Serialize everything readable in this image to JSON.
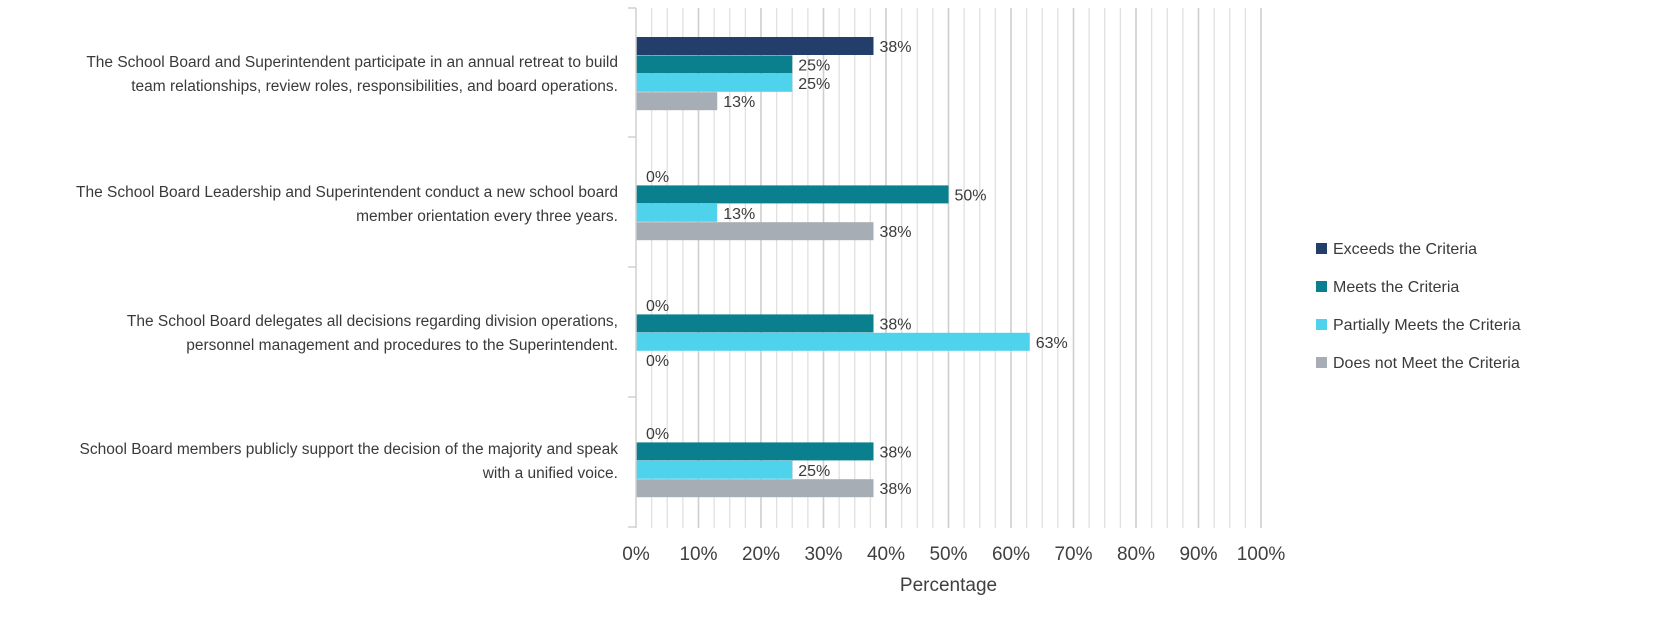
{
  "chart_data": {
    "type": "bar",
    "orientation": "horizontal",
    "title": "",
    "xlabel": "Percentage",
    "ylabel": "",
    "xlim": [
      0,
      100
    ],
    "x_ticks": [
      0,
      10,
      20,
      30,
      40,
      50,
      60,
      70,
      80,
      90,
      100
    ],
    "x_tick_labels": [
      "0%",
      "10%",
      "20%",
      "30%",
      "40%",
      "50%",
      "60%",
      "70%",
      "80%",
      "90%",
      "100%"
    ],
    "grid": "vertical lines every 2.5%",
    "legend_position": "right",
    "categories": [
      [
        "The School Board and Superintendent participate in an annual retreat to build",
        "team relationships, review roles, responsibilities, and board operations."
      ],
      [
        "The School Board Leadership and Superintendent conduct a new school board",
        "member orientation every three years."
      ],
      [
        "The School Board delegates all decisions regarding division operations,",
        "personnel management and procedures to the Superintendent."
      ],
      [
        "School Board members publicly support the decision of the majority and speak",
        "with a unified voice."
      ]
    ],
    "series": [
      {
        "name": "Exceeds the Criteria",
        "color": "#243e6b",
        "values": [
          38,
          0,
          0,
          0
        ],
        "labels": [
          "38%",
          "0%",
          "0%",
          "0%"
        ]
      },
      {
        "name": "Meets the Criteria",
        "color": "#0a7f8e",
        "values": [
          25,
          50,
          38,
          38
        ],
        "labels": [
          "25%",
          "50%",
          "38%",
          "38%"
        ]
      },
      {
        "name": "Partially Meets the Criteria",
        "color": "#4fd2ec",
        "values": [
          25,
          13,
          63,
          25
        ],
        "labels": [
          "25%",
          "13%",
          "63%",
          "25%"
        ]
      },
      {
        "name": "Does not Meet the Criteria",
        "color": "#a7adb4",
        "values": [
          13,
          38,
          0,
          38
        ],
        "labels": [
          "13%",
          "38%",
          "0%",
          "38%"
        ]
      }
    ]
  }
}
